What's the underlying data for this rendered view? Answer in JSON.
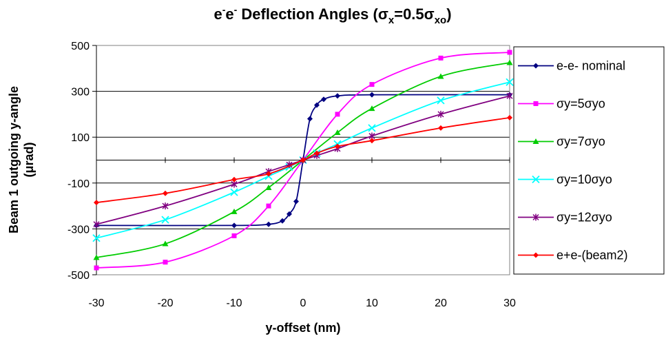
{
  "chart_data": {
    "type": "line",
    "title": {
      "prefix": "e",
      "sup1": "-",
      "mid": "e",
      "sup2": "-",
      "main": " Deflection Angles (σ",
      "sub1": "x",
      "main2": "=0.5σ",
      "sub2": "xo",
      "end": ")"
    },
    "xlabel": "y-offset (nm)",
    "ylabel_line1": "Beam 1 outgoing y-angle",
    "ylabel_line2": "(μrad)",
    "xlim": [
      -30,
      30
    ],
    "ylim": [
      -500,
      500
    ],
    "xticks": [
      -30,
      -20,
      -10,
      0,
      10,
      20,
      30
    ],
    "yticks": [
      -500,
      -300,
      -100,
      100,
      300,
      500
    ],
    "ytick_labels": [
      "-500",
      "-300",
      "-100",
      "100",
      "300",
      "500"
    ],
    "xtick_labels": [
      "-30",
      "-20",
      "-10",
      "0",
      "10",
      "20",
      "30"
    ],
    "grid": "horizontal",
    "legend_position": "right",
    "series": [
      {
        "name": "e-e- nominal",
        "color": "#000080",
        "marker": "diamond",
        "x": [
          -30,
          -10,
          -5,
          -3,
          -2,
          -1,
          0,
          1,
          2,
          3,
          5,
          10,
          30
        ],
        "y": [
          -285,
          -285,
          -280,
          -265,
          -235,
          -180,
          0,
          180,
          240,
          265,
          280,
          285,
          285
        ]
      },
      {
        "name": "σy=5σyo",
        "color": "#ff00ff",
        "marker": "square",
        "x": [
          -30,
          -20,
          -10,
          -5,
          0,
          5,
          10,
          20,
          30
        ],
        "y": [
          -470,
          -445,
          -330,
          -200,
          0,
          200,
          330,
          445,
          470
        ]
      },
      {
        "name": "σy=7σyo",
        "color": "#00cc00",
        "marker": "triangle",
        "x": [
          -30,
          -20,
          -10,
          -5,
          0,
          5,
          10,
          20,
          30
        ],
        "y": [
          -425,
          -365,
          -225,
          -120,
          0,
          120,
          225,
          365,
          425
        ]
      },
      {
        "name": "σy=10σyo",
        "color": "#00ffff",
        "marker": "x",
        "x": [
          -30,
          -20,
          -10,
          -5,
          -2,
          0,
          2,
          5,
          10,
          20,
          30
        ],
        "y": [
          -340,
          -260,
          -140,
          -70,
          -30,
          0,
          30,
          70,
          140,
          260,
          340
        ]
      },
      {
        "name": "σy=12σyo",
        "color": "#800080",
        "marker": "star",
        "x": [
          -30,
          -20,
          -10,
          -5,
          -2,
          0,
          2,
          5,
          10,
          20,
          30
        ],
        "y": [
          -280,
          -200,
          -105,
          -50,
          -20,
          0,
          20,
          50,
          105,
          200,
          280
        ]
      },
      {
        "name": "e+e-(beam2)",
        "color": "#ff0000",
        "marker": "diamond",
        "x": [
          -30,
          -20,
          -10,
          -5,
          0,
          2,
          5,
          10,
          20,
          30
        ],
        "y": [
          -185,
          -145,
          -85,
          -60,
          0,
          30,
          60,
          85,
          140,
          185
        ]
      }
    ]
  }
}
